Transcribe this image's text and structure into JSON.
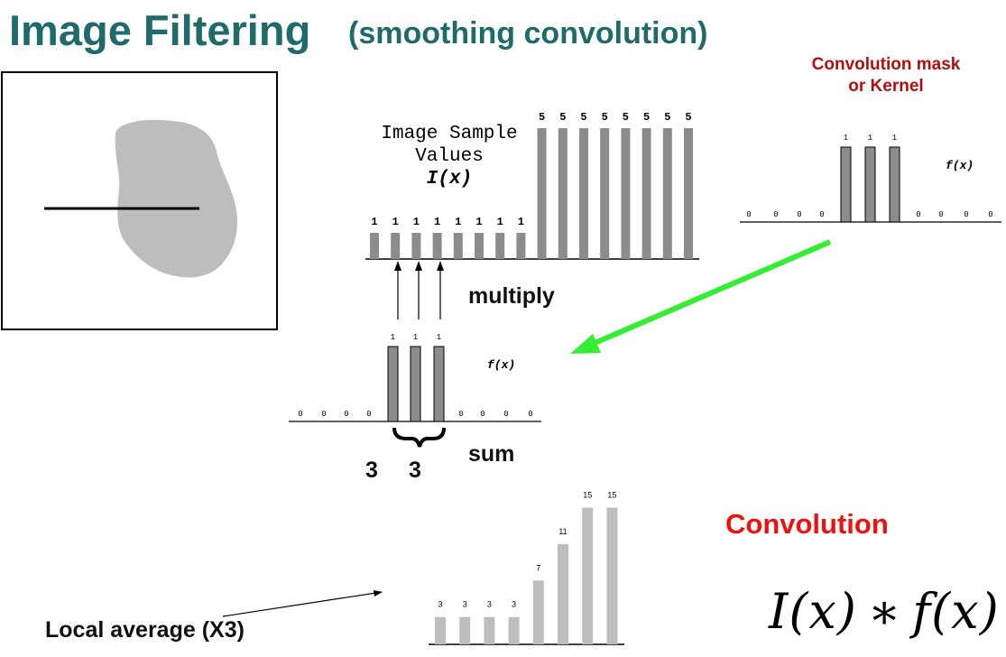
{
  "title": {
    "main": "Image Filtering",
    "sub": "(smoothing convolution)"
  },
  "mask_label": {
    "line1": "Convolution mask",
    "line2": "or Kernel"
  },
  "sample_label": {
    "line1": "Image Sample",
    "line2": "Values",
    "line3": "I(x)"
  },
  "multiply_label": "multiply",
  "sum_label": "sum",
  "sum_values": [
    "3",
    "3"
  ],
  "convolution_label": "Convolution",
  "local_average_label": "Local average (X3)",
  "formula": "I(x) ∗ f(x)",
  "kernel_fx_label": "f(x)",
  "slid_kernel_fx_label": "f(x)",
  "colors": {
    "title": "#1f6b6b",
    "mask_label": "#b01010",
    "convolution": "#ee1111",
    "arrow": "#33ee33",
    "bar_dark": "#8c8c8c",
    "bar_light": "#bdbdbd",
    "blob": "#bdbdbd"
  },
  "chart_data": [
    {
      "type": "bar",
      "name": "image_samples",
      "values": [
        1,
        1,
        1,
        1,
        1,
        1,
        1,
        1,
        5,
        5,
        5,
        5,
        5,
        5,
        5,
        5
      ],
      "labels": [
        "1",
        "1",
        "1",
        "1",
        "1",
        "1",
        "1",
        "1",
        "5",
        "5",
        "5",
        "5",
        "5",
        "5",
        "5",
        "5"
      ]
    },
    {
      "type": "bar",
      "name": "kernel",
      "values": [
        0,
        0,
        0,
        0,
        1,
        1,
        1,
        0,
        0,
        0,
        0
      ],
      "labels": [
        "0",
        "0",
        "0",
        "0",
        "1",
        "1",
        "1",
        "0",
        "0",
        "0",
        "0"
      ]
    },
    {
      "type": "bar",
      "name": "kernel_slid",
      "values": [
        0,
        0,
        0,
        0,
        1,
        1,
        1,
        0,
        0,
        0,
        0
      ],
      "labels": [
        "0",
        "0",
        "0",
        "0",
        "1",
        "1",
        "1",
        "0",
        "0",
        "0",
        "0"
      ]
    },
    {
      "type": "bar",
      "name": "convolution_result",
      "values": [
        3,
        3,
        3,
        3,
        7,
        11,
        15,
        15
      ],
      "labels": [
        "3",
        "3",
        "3",
        "3",
        "7",
        "11",
        "15",
        "15"
      ]
    }
  ]
}
